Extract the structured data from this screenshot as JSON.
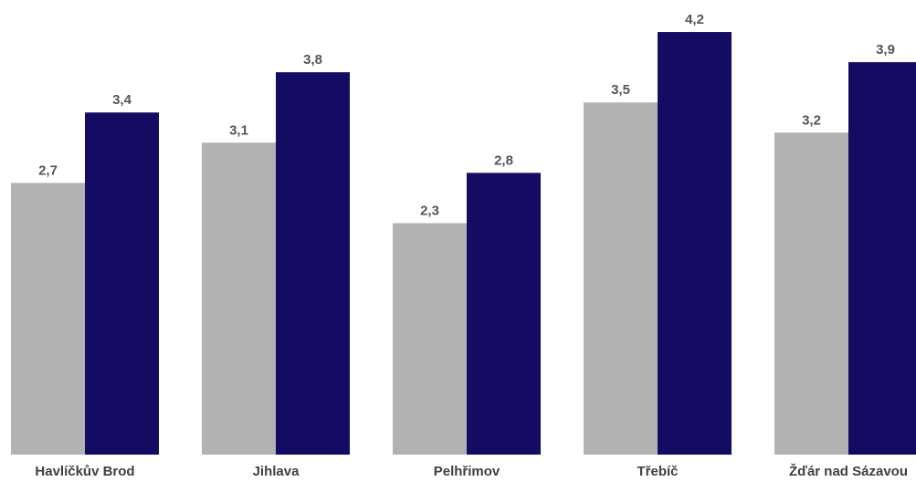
{
  "chart_data": {
    "type": "bar",
    "categories": [
      "Havlíčkův Brod",
      "Jihlava",
      "Pelhřimov",
      "Třebíč",
      "Žďár nad Sázavou"
    ],
    "series": [
      {
        "values": [
          2.7,
          3.1,
          2.3,
          3.5,
          3.2
        ],
        "value_labels": [
          "2,7",
          "3,1",
          "2,3",
          "3,5",
          "3,2"
        ],
        "color": "#b2b2b2"
      },
      {
        "values": [
          3.4,
          3.8,
          2.8,
          4.2,
          3.9
        ],
        "value_labels": [
          "3,4",
          "3,8",
          "2,8",
          "4,2",
          "3,9"
        ],
        "color": "#130c62"
      }
    ],
    "ylim": [
      0,
      4.4
    ],
    "grid": false,
    "legend": "none"
  }
}
